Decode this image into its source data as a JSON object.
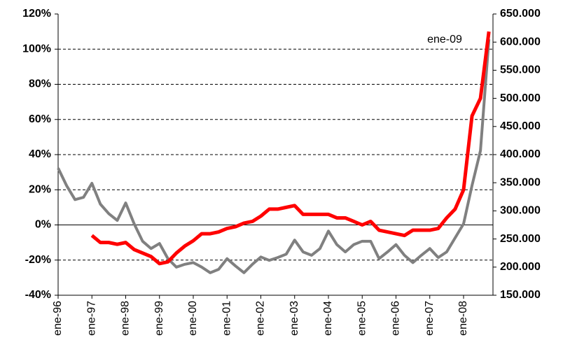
{
  "chart_data": {
    "type": "line",
    "annotation": "ene-09",
    "categories": [
      "ene-96",
      null,
      null,
      null,
      "ene-97",
      null,
      null,
      null,
      "ene-98",
      null,
      null,
      null,
      "ene-99",
      null,
      null,
      null,
      "ene-00",
      null,
      null,
      null,
      "ene-01",
      null,
      null,
      null,
      "ene-02",
      null,
      null,
      null,
      "ene-03",
      null,
      null,
      null,
      "ene-04",
      null,
      null,
      null,
      "ene-05",
      null,
      null,
      null,
      "ene-06",
      null,
      null,
      null,
      "ene-07",
      null,
      null,
      null,
      "ene-08",
      null,
      null,
      null
    ],
    "series": [
      {
        "color": "#ff0000",
        "values": [
          null,
          null,
          null,
          null,
          -6,
          -10,
          -10,
          -11,
          -10,
          -14,
          -16,
          -18,
          -22,
          -21,
          -16,
          -12,
          -9,
          -5,
          -5,
          -4,
          -2,
          -1,
          1,
          2,
          5,
          9,
          9,
          10,
          11,
          6,
          6,
          6,
          6,
          4,
          4,
          2,
          0,
          2,
          -3,
          -4,
          -5,
          -6,
          -3,
          -3,
          -3,
          -2,
          4,
          9,
          20,
          62,
          72,
          110
        ]
      },
      {
        "color": "#808080",
        "axis": "y2",
        "values": [
          376000,
          345000,
          320000,
          324000,
          349000,
          312000,
          295000,
          283000,
          314000,
          277000,
          246000,
          233000,
          242000,
          215000,
          200000,
          205000,
          208000,
          200000,
          190000,
          196000,
          215000,
          202000,
          190000,
          205000,
          218000,
          212000,
          217000,
          223000,
          248000,
          227000,
          221000,
          233000,
          264000,
          240000,
          227000,
          240000,
          246000,
          246000,
          215000,
          227000,
          240000,
          221000,
          208000,
          221000,
          233000,
          217000,
          227000,
          252000,
          277000,
          345000,
          407000,
          605000
        ]
      }
    ],
    "ylim": [
      -40,
      120
    ],
    "yticks": [
      {
        "value": -40,
        "label": "-40%"
      },
      {
        "value": -20,
        "label": "-20%"
      },
      {
        "value": 0,
        "label": "0%"
      },
      {
        "value": 20,
        "label": "20%"
      },
      {
        "value": 40,
        "label": "40%"
      },
      {
        "value": 60,
        "label": "60%"
      },
      {
        "value": 80,
        "label": "80%"
      },
      {
        "value": 100,
        "label": "100%"
      },
      {
        "value": 120,
        "label": "120%"
      }
    ],
    "y2lim": [
      150000,
      650000
    ],
    "y2ticks": [
      {
        "value": 150000,
        "label": "150.000"
      },
      {
        "value": 200000,
        "label": "200.000"
      },
      {
        "value": 250000,
        "label": "250.000"
      },
      {
        "value": 300000,
        "label": "300.000"
      },
      {
        "value": 350000,
        "label": "350.000"
      },
      {
        "value": 400000,
        "label": "400.000"
      },
      {
        "value": 450000,
        "label": "450.000"
      },
      {
        "value": 500000,
        "label": "500.000"
      },
      {
        "value": 550000,
        "label": "550.000"
      },
      {
        "value": 600000,
        "label": "600.000"
      },
      {
        "value": 650000,
        "label": "650.000"
      }
    ],
    "grid": true
  }
}
